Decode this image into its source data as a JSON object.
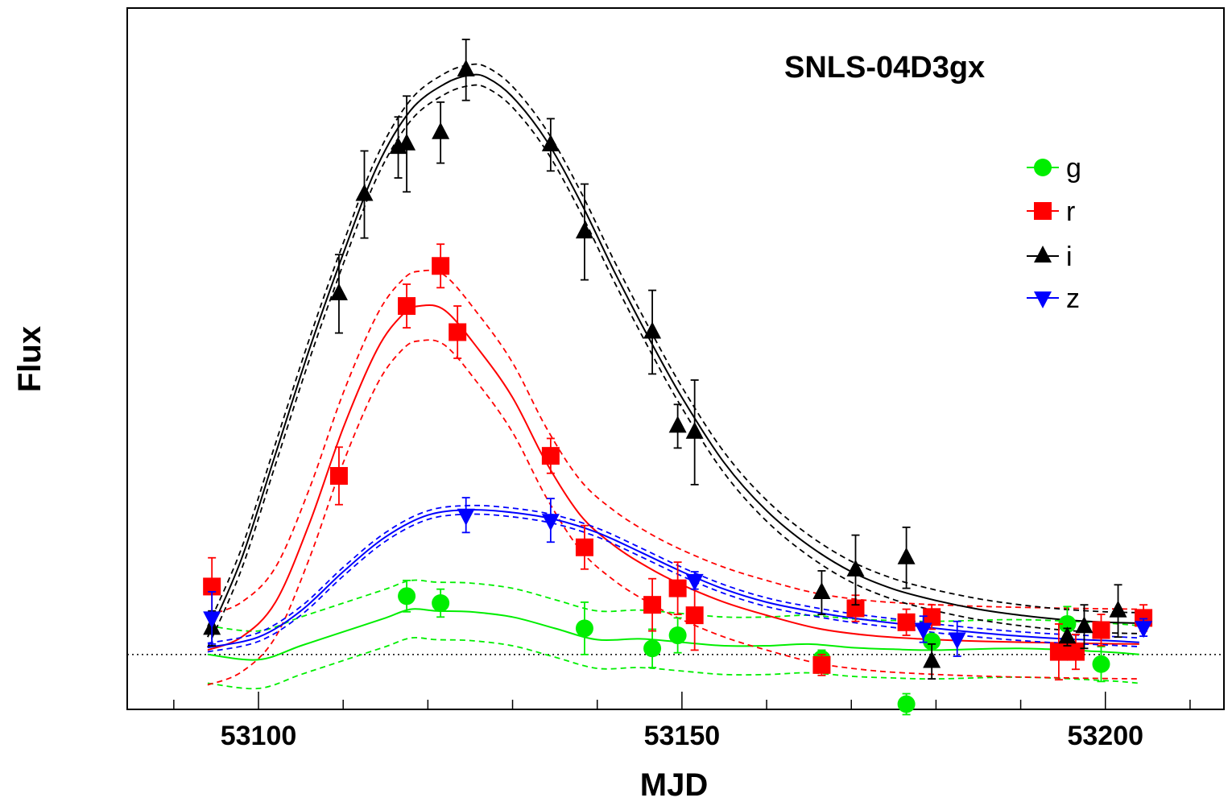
{
  "chart_data": {
    "type": "scatter",
    "title": "SNLS-04D3gx",
    "xlabel": "MJD",
    "ylabel": "Flux",
    "xlim": [
      53084.5,
      53214
    ],
    "ylim": [
      -63,
      742
    ],
    "x_ticks": [
      53100,
      53150,
      53200
    ],
    "x_tick_labels": [
      "53100",
      "53150",
      "53200"
    ],
    "x_minor_step": 10,
    "y_ticks_shown": false,
    "zero_line": 0,
    "legend_position": "upper-right",
    "grid": false,
    "series": [
      {
        "name": "g",
        "color": "#00ee00",
        "marker": "circle",
        "points": [
          {
            "x": 53117.5,
            "y": 67,
            "err": 18
          },
          {
            "x": 53121.5,
            "y": 59,
            "err": 16
          },
          {
            "x": 53138.5,
            "y": 30,
            "err": 30
          },
          {
            "x": 53146.5,
            "y": 7,
            "err": 22
          },
          {
            "x": 53149.5,
            "y": 22,
            "err": 20
          },
          {
            "x": 53166.5,
            "y": -5,
            "err": 10
          },
          {
            "x": 53176.5,
            "y": -57,
            "err": 12
          },
          {
            "x": 53179.5,
            "y": 15,
            "err": 8
          },
          {
            "x": 53195.5,
            "y": 35,
            "err": 20
          },
          {
            "x": 53199.5,
            "y": -11,
            "err": 20
          }
        ],
        "fit": [
          [
            53094,
            0
          ],
          [
            53100,
            -6
          ],
          [
            53105,
            10
          ],
          [
            53110,
            26
          ],
          [
            53115,
            42
          ],
          [
            53118,
            52
          ],
          [
            53121,
            50
          ],
          [
            53125,
            49
          ],
          [
            53130,
            43
          ],
          [
            53135,
            30
          ],
          [
            53140,
            17
          ],
          [
            53145,
            18
          ],
          [
            53150,
            14
          ],
          [
            53155,
            10
          ],
          [
            53160,
            10
          ],
          [
            53165,
            12
          ],
          [
            53170,
            8
          ],
          [
            53175,
            6
          ],
          [
            53180,
            5
          ],
          [
            53190,
            7
          ],
          [
            53200,
            3
          ],
          [
            53204,
            0
          ]
        ],
        "band": 33
      },
      {
        "name": "r",
        "color": "#ff0000",
        "marker": "square",
        "points": [
          {
            "x": 53094.5,
            "y": 78,
            "err": 33
          },
          {
            "x": 53109.5,
            "y": 205,
            "err": 33
          },
          {
            "x": 53117.5,
            "y": 400,
            "err": 25
          },
          {
            "x": 53121.5,
            "y": 446,
            "err": 25
          },
          {
            "x": 53123.5,
            "y": 370,
            "err": 30
          },
          {
            "x": 53134.5,
            "y": 228,
            "err": 20
          },
          {
            "x": 53138.5,
            "y": 123,
            "err": 25
          },
          {
            "x": 53146.5,
            "y": 57,
            "err": 30
          },
          {
            "x": 53149.5,
            "y": 76,
            "err": 30
          },
          {
            "x": 53151.5,
            "y": 45,
            "err": 40
          },
          {
            "x": 53166.5,
            "y": -12,
            "err": 12
          },
          {
            "x": 53170.5,
            "y": 53,
            "err": 15
          },
          {
            "x": 53176.5,
            "y": 37,
            "err": 15
          },
          {
            "x": 53179.5,
            "y": 43,
            "err": 14
          },
          {
            "x": 53194.5,
            "y": 3,
            "err": 32
          },
          {
            "x": 53196.5,
            "y": 3,
            "err": 20
          },
          {
            "x": 53199.5,
            "y": 28,
            "err": 18
          },
          {
            "x": 53204.5,
            "y": 42,
            "err": 15
          }
        ],
        "fit": [
          [
            53094,
            5
          ],
          [
            53098,
            20
          ],
          [
            53102,
            60
          ],
          [
            53106,
            150
          ],
          [
            53110,
            260
          ],
          [
            53114,
            350
          ],
          [
            53117,
            390
          ],
          [
            53119,
            400
          ],
          [
            53122,
            395
          ],
          [
            53126,
            350
          ],
          [
            53130,
            295
          ],
          [
            53134,
            220
          ],
          [
            53138,
            160
          ],
          [
            53142,
            125
          ],
          [
            53146,
            100
          ],
          [
            53150,
            80
          ],
          [
            53155,
            60
          ],
          [
            53160,
            45
          ],
          [
            53166,
            30
          ],
          [
            53172,
            22
          ],
          [
            53178,
            18
          ],
          [
            53186,
            15
          ],
          [
            53196,
            13
          ],
          [
            53204,
            12
          ]
        ],
        "band": 40
      },
      {
        "name": "i",
        "color": "#000000",
        "marker": "triangle-up",
        "points": [
          {
            "x": 53094.5,
            "y": 30,
            "err": 20
          },
          {
            "x": 53109.5,
            "y": 414,
            "err": 45
          },
          {
            "x": 53112.5,
            "y": 528,
            "err": 50
          },
          {
            "x": 53116.5,
            "y": 582,
            "err": 35
          },
          {
            "x": 53117.5,
            "y": 586,
            "err": 55
          },
          {
            "x": 53121.5,
            "y": 599,
            "err": 35
          },
          {
            "x": 53124.5,
            "y": 671,
            "err": 35
          },
          {
            "x": 53134.5,
            "y": 585,
            "err": 30
          },
          {
            "x": 53138.5,
            "y": 485,
            "err": 55
          },
          {
            "x": 53146.5,
            "y": 370,
            "err": 48
          },
          {
            "x": 53149.5,
            "y": 262,
            "err": 25
          },
          {
            "x": 53151.5,
            "y": 255,
            "err": 60
          },
          {
            "x": 53166.5,
            "y": 71,
            "err": 25
          },
          {
            "x": 53170.5,
            "y": 97,
            "err": 40
          },
          {
            "x": 53176.5,
            "y": 111,
            "err": 35
          },
          {
            "x": 53179.5,
            "y": -8,
            "err": 20
          },
          {
            "x": 53195.5,
            "y": 20,
            "err": 10
          },
          {
            "x": 53197.5,
            "y": 32,
            "err": 25
          },
          {
            "x": 53201.5,
            "y": 50,
            "err": 30
          }
        ],
        "fit": [
          [
            53094,
            20
          ],
          [
            53098,
            110
          ],
          [
            53102,
            230
          ],
          [
            53106,
            350
          ],
          [
            53110,
            460
          ],
          [
            53114,
            560
          ],
          [
            53118,
            625
          ],
          [
            53122,
            655
          ],
          [
            53125,
            665
          ],
          [
            53127,
            662
          ],
          [
            53130,
            640
          ],
          [
            53134,
            590
          ],
          [
            53138,
            520
          ],
          [
            53142,
            440
          ],
          [
            53146,
            365
          ],
          [
            53150,
            295
          ],
          [
            53155,
            220
          ],
          [
            53160,
            165
          ],
          [
            53165,
            125
          ],
          [
            53170,
            95
          ],
          [
            53175,
            75
          ],
          [
            53180,
            62
          ],
          [
            53185,
            52
          ],
          [
            53190,
            45
          ],
          [
            53195,
            40
          ],
          [
            53200,
            37
          ],
          [
            53204,
            36
          ]
        ],
        "band": 12
      },
      {
        "name": "z",
        "color": "#0000ff",
        "marker": "triangle-down",
        "points": [
          {
            "x": 53094.5,
            "y": 42,
            "err": 30
          },
          {
            "x": 53124.5,
            "y": 160,
            "err": 20
          },
          {
            "x": 53134.5,
            "y": 154,
            "err": 25
          },
          {
            "x": 53151.5,
            "y": 85,
            "err": 10
          },
          {
            "x": 53178.5,
            "y": 29,
            "err": 15
          },
          {
            "x": 53182.5,
            "y": 18,
            "err": 20
          },
          {
            "x": 53204.5,
            "y": 31,
            "err": 10
          }
        ],
        "fit": [
          [
            53094,
            8
          ],
          [
            53100,
            20
          ],
          [
            53105,
            50
          ],
          [
            53110,
            95
          ],
          [
            53115,
            135
          ],
          [
            53120,
            160
          ],
          [
            53125,
            166
          ],
          [
            53130,
            163
          ],
          [
            53135,
            155
          ],
          [
            53140,
            140
          ],
          [
            53145,
            118
          ],
          [
            53150,
            95
          ],
          [
            53155,
            75
          ],
          [
            53160,
            60
          ],
          [
            53165,
            50
          ],
          [
            53170,
            42
          ],
          [
            53175,
            36
          ],
          [
            53180,
            30
          ],
          [
            53185,
            25
          ],
          [
            53190,
            21
          ],
          [
            53195,
            18
          ],
          [
            53200,
            16
          ],
          [
            53204,
            14
          ]
        ],
        "band": 5
      }
    ]
  }
}
